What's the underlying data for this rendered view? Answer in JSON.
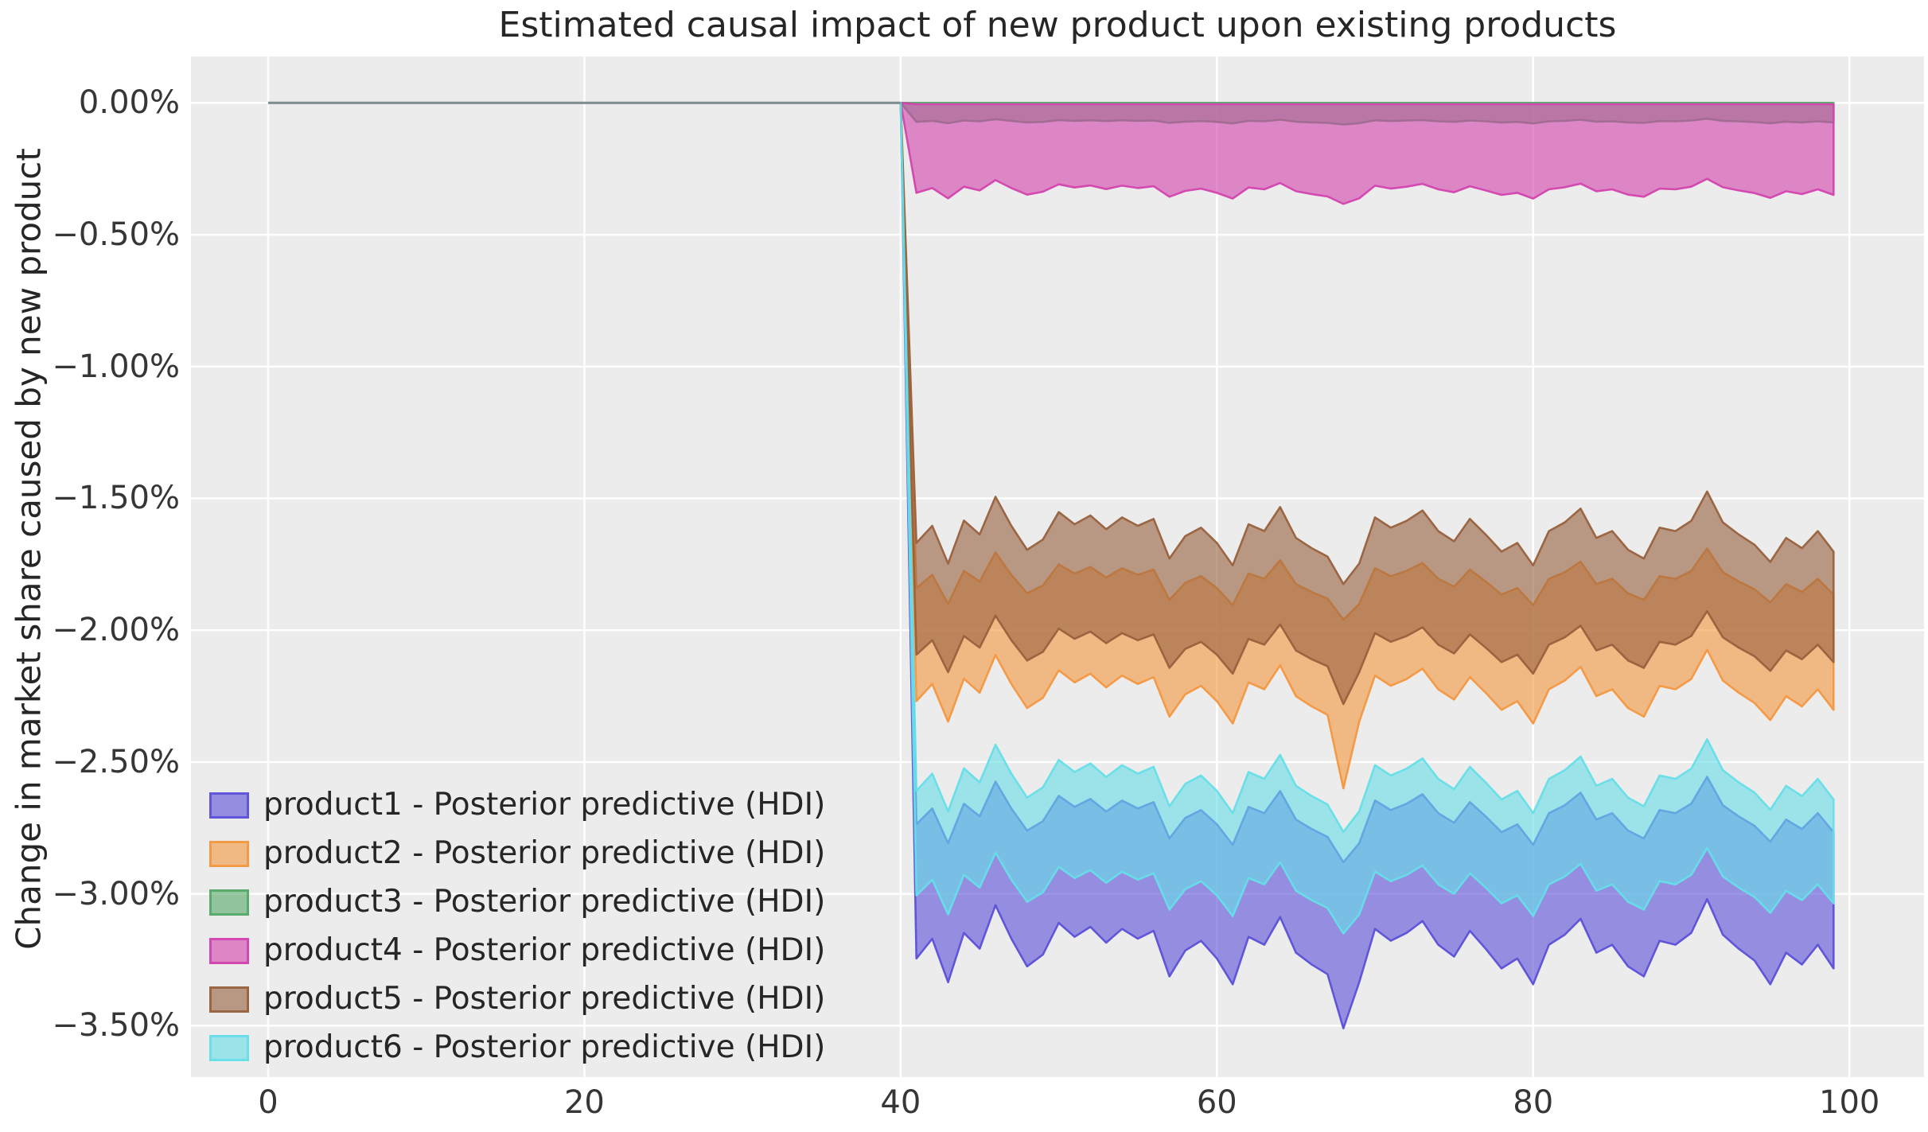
{
  "colors": {
    "figure_bg": "#ffffff",
    "axes_bg": "#ececec",
    "grid": "#ffffff",
    "pre_period_line": "#7e8f92",
    "tick_text": "#363636",
    "title_text": "#262626"
  },
  "chart_data": {
    "type": "area",
    "title": "Estimated causal impact of new product upon existing products",
    "xlabel": "",
    "ylabel": "Change in market share caused by new product",
    "grid": true,
    "legend_position": "lower left",
    "xlim": [
      -4.88,
      104.72
    ],
    "ylim": [
      -3.695,
      0.176
    ],
    "xticks": [
      {
        "label": "0",
        "value": 0
      },
      {
        "label": "20",
        "value": 20
      },
      {
        "label": "40",
        "value": 40
      },
      {
        "label": "60",
        "value": 60
      },
      {
        "label": "80",
        "value": 80
      },
      {
        "label": "100",
        "value": 100
      }
    ],
    "yticks": [
      {
        "label": "0.00%",
        "value": 0
      },
      {
        "label": "−0.50%",
        "value": -0.5
      },
      {
        "label": "−1.00%",
        "value": -1.0
      },
      {
        "label": "−1.50%",
        "value": -1.5
      },
      {
        "label": "−2.00%",
        "value": -2.0
      },
      {
        "label": "−2.50%",
        "value": -2.5
      },
      {
        "label": "−3.00%",
        "value": -3.0
      },
      {
        "label": "−3.50%",
        "value": -3.5
      }
    ],
    "intervention_x": 40,
    "pre_period": {
      "x": [
        0,
        40
      ],
      "value_pct": 0
    },
    "x_post": [
      40,
      41,
      42,
      43,
      44,
      45,
      46,
      47,
      48,
      49,
      50,
      51,
      52,
      53,
      54,
      55,
      56,
      57,
      58,
      59,
      60,
      61,
      62,
      63,
      64,
      65,
      66,
      67,
      68,
      69,
      70,
      71,
      72,
      73,
      74,
      75,
      76,
      77,
      78,
      79,
      80,
      81,
      82,
      83,
      84,
      85,
      86,
      87,
      88,
      89,
      90,
      91,
      92,
      93,
      94,
      95,
      96,
      97,
      98,
      99
    ],
    "series": [
      {
        "id": "product1",
        "label": "product1 - Posterior predictive (HDI)",
        "color": "#5b50d8",
        "fill_opacity": 0.6,
        "upper_pct": [
          0,
          -2.736,
          -2.676,
          -2.808,
          -2.658,
          -2.706,
          -2.574,
          -2.676,
          -2.76,
          -2.724,
          -2.628,
          -2.67,
          -2.64,
          -2.688,
          -2.646,
          -2.676,
          -2.652,
          -2.79,
          -2.712,
          -2.682,
          -2.736,
          -2.814,
          -2.67,
          -2.694,
          -2.61,
          -2.718,
          -2.754,
          -2.784,
          -2.88,
          -2.808,
          -2.646,
          -2.682,
          -2.658,
          -2.622,
          -2.694,
          -2.73,
          -2.652,
          -2.706,
          -2.766,
          -2.736,
          -2.814,
          -2.694,
          -2.664,
          -2.616,
          -2.718,
          -2.694,
          -2.76,
          -2.79,
          -2.682,
          -2.694,
          -2.658,
          -2.556,
          -2.664,
          -2.706,
          -2.742,
          -2.802,
          -2.718,
          -2.754,
          -2.694,
          -2.766
        ],
        "lower_pct": [
          0,
          -3.245,
          -3.17,
          -3.335,
          -3.148,
          -3.208,
          -3.043,
          -3.17,
          -3.275,
          -3.23,
          -3.11,
          -3.163,
          -3.125,
          -3.185,
          -3.133,
          -3.17,
          -3.14,
          -3.313,
          -3.215,
          -3.178,
          -3.245,
          -3.343,
          -3.163,
          -3.193,
          -3.088,
          -3.223,
          -3.268,
          -3.305,
          -3.51,
          -3.335,
          -3.133,
          -3.178,
          -3.148,
          -3.103,
          -3.193,
          -3.238,
          -3.14,
          -3.208,
          -3.283,
          -3.245,
          -3.343,
          -3.193,
          -3.155,
          -3.095,
          -3.223,
          -3.193,
          -3.275,
          -3.313,
          -3.178,
          -3.193,
          -3.148,
          -3.02,
          -3.155,
          -3.208,
          -3.253,
          -3.343,
          -3.223,
          -3.268,
          -3.193,
          -3.283
        ]
      },
      {
        "id": "product2",
        "label": "product2 - Posterior predictive (HDI)",
        "color": "#f49740",
        "fill_opacity": 0.6,
        "upper_pct": [
          0,
          -1.84,
          -1.79,
          -1.9,
          -1.775,
          -1.815,
          -1.705,
          -1.79,
          -1.86,
          -1.83,
          -1.75,
          -1.785,
          -1.76,
          -1.8,
          -1.765,
          -1.79,
          -1.77,
          -1.885,
          -1.82,
          -1.795,
          -1.84,
          -1.905,
          -1.785,
          -1.805,
          -1.735,
          -1.825,
          -1.855,
          -1.88,
          -1.96,
          -1.9,
          -1.765,
          -1.795,
          -1.775,
          -1.745,
          -1.805,
          -1.835,
          -1.77,
          -1.815,
          -1.865,
          -1.84,
          -1.905,
          -1.805,
          -1.78,
          -1.74,
          -1.825,
          -1.805,
          -1.86,
          -1.885,
          -1.795,
          -1.805,
          -1.775,
          -1.69,
          -1.78,
          -1.815,
          -1.845,
          -1.895,
          -1.825,
          -1.855,
          -1.805,
          -1.865
        ],
        "lower_pct": [
          0,
          -2.269,
          -2.204,
          -2.347,
          -2.184,
          -2.237,
          -2.094,
          -2.204,
          -2.295,
          -2.256,
          -2.152,
          -2.198,
          -2.165,
          -2.217,
          -2.172,
          -2.204,
          -2.178,
          -2.328,
          -2.243,
          -2.211,
          -2.269,
          -2.354,
          -2.198,
          -2.224,
          -2.133,
          -2.25,
          -2.289,
          -2.321,
          -2.6,
          -2.347,
          -2.172,
          -2.211,
          -2.185,
          -2.146,
          -2.224,
          -2.263,
          -2.178,
          -2.237,
          -2.302,
          -2.269,
          -2.354,
          -2.224,
          -2.191,
          -2.139,
          -2.25,
          -2.224,
          -2.295,
          -2.328,
          -2.211,
          -2.224,
          -2.185,
          -2.074,
          -2.191,
          -2.237,
          -2.276,
          -2.341,
          -2.25,
          -2.289,
          -2.224,
          -2.302
        ]
      },
      {
        "id": "product3",
        "label": "product3 - Posterior predictive (HDI)",
        "color": "#55a868",
        "fill_opacity": 0.6,
        "upper_pct": [
          0,
          0,
          0,
          0,
          0,
          0,
          0,
          0,
          0,
          0,
          0,
          0,
          0,
          0,
          0,
          0,
          0,
          0,
          0,
          0,
          0,
          0,
          0,
          0,
          0,
          0,
          0,
          0,
          0,
          0,
          0,
          0,
          0,
          0,
          0,
          0,
          0,
          0,
          0,
          0,
          0,
          0,
          0,
          0,
          0,
          0,
          0,
          0,
          0,
          0,
          0,
          0,
          0,
          0,
          0,
          0,
          0,
          0,
          0,
          0
        ],
        "lower_pct": [
          0,
          -0.072,
          -0.068,
          -0.077,
          -0.067,
          -0.07,
          -0.062,
          -0.068,
          -0.074,
          -0.072,
          -0.065,
          -0.068,
          -0.066,
          -0.069,
          -0.066,
          -0.068,
          -0.067,
          -0.076,
          -0.071,
          -0.069,
          -0.072,
          -0.078,
          -0.068,
          -0.07,
          -0.064,
          -0.071,
          -0.074,
          -0.076,
          -0.082,
          -0.077,
          -0.066,
          -0.069,
          -0.067,
          -0.065,
          -0.07,
          -0.072,
          -0.067,
          -0.07,
          -0.074,
          -0.072,
          -0.078,
          -0.07,
          -0.068,
          -0.064,
          -0.071,
          -0.07,
          -0.074,
          -0.076,
          -0.069,
          -0.07,
          -0.067,
          -0.06,
          -0.068,
          -0.07,
          -0.073,
          -0.077,
          -0.071,
          -0.074,
          -0.07,
          -0.074
        ]
      },
      {
        "id": "product4",
        "label": "product4 - Posterior predictive (HDI)",
        "color": "#d343ae",
        "fill_opacity": 0.6,
        "upper_pct": [
          0,
          -0.005,
          -0.005,
          -0.005,
          -0.005,
          -0.005,
          -0.005,
          -0.005,
          -0.005,
          -0.005,
          -0.005,
          -0.005,
          -0.005,
          -0.005,
          -0.005,
          -0.005,
          -0.005,
          -0.005,
          -0.005,
          -0.005,
          -0.005,
          -0.005,
          -0.005,
          -0.005,
          -0.005,
          -0.005,
          -0.005,
          -0.005,
          -0.005,
          -0.005,
          -0.005,
          -0.005,
          -0.005,
          -0.005,
          -0.005,
          -0.005,
          -0.005,
          -0.005,
          -0.005,
          -0.005,
          -0.005,
          -0.005,
          -0.005,
          -0.005,
          -0.005,
          -0.005,
          -0.005,
          -0.005,
          -0.005,
          -0.005,
          -0.005,
          -0.005,
          -0.005,
          -0.005,
          -0.005,
          -0.005,
          -0.005,
          -0.005,
          -0.005,
          -0.005
        ],
        "lower_pct": [
          0,
          -0.341,
          -0.323,
          -0.362,
          -0.318,
          -0.332,
          -0.293,
          -0.323,
          -0.348,
          -0.337,
          -0.309,
          -0.321,
          -0.313,
          -0.327,
          -0.314,
          -0.323,
          -0.316,
          -0.356,
          -0.334,
          -0.325,
          -0.341,
          -0.363,
          -0.321,
          -0.328,
          -0.304,
          -0.335,
          -0.346,
          -0.355,
          -0.383,
          -0.362,
          -0.314,
          -0.325,
          -0.318,
          -0.307,
          -0.328,
          -0.339,
          -0.316,
          -0.332,
          -0.349,
          -0.341,
          -0.363,
          -0.328,
          -0.32,
          -0.306,
          -0.335,
          -0.328,
          -0.348,
          -0.356,
          -0.325,
          -0.328,
          -0.318,
          -0.288,
          -0.32,
          -0.332,
          -0.342,
          -0.36,
          -0.335,
          -0.346,
          -0.328,
          -0.349
        ]
      },
      {
        "id": "product5",
        "label": "product5 - Posterior predictive (HDI)",
        "color": "#98613d",
        "fill_opacity": 0.6,
        "upper_pct": [
          0,
          -1.669,
          -1.604,
          -1.747,
          -1.584,
          -1.637,
          -1.494,
          -1.604,
          -1.695,
          -1.656,
          -1.552,
          -1.598,
          -1.565,
          -1.617,
          -1.572,
          -1.604,
          -1.578,
          -1.728,
          -1.643,
          -1.611,
          -1.669,
          -1.754,
          -1.598,
          -1.624,
          -1.533,
          -1.65,
          -1.689,
          -1.721,
          -1.825,
          -1.747,
          -1.572,
          -1.611,
          -1.585,
          -1.546,
          -1.624,
          -1.663,
          -1.578,
          -1.637,
          -1.702,
          -1.669,
          -1.754,
          -1.624,
          -1.591,
          -1.539,
          -1.65,
          -1.624,
          -1.695,
          -1.728,
          -1.611,
          -1.624,
          -1.585,
          -1.474,
          -1.591,
          -1.637,
          -1.676,
          -1.741,
          -1.65,
          -1.689,
          -1.624,
          -1.702
        ],
        "lower_pct": [
          0,
          -2.093,
          -2.038,
          -2.159,
          -2.022,
          -2.066,
          -1.945,
          -2.038,
          -2.115,
          -2.082,
          -1.994,
          -2.033,
          -2.005,
          -2.049,
          -2.011,
          -2.038,
          -2.016,
          -2.143,
          -2.071,
          -2.044,
          -2.093,
          -2.165,
          -2.033,
          -2.055,
          -1.978,
          -2.077,
          -2.11,
          -2.137,
          -2.28,
          -2.159,
          -2.011,
          -2.044,
          -2.022,
          -1.989,
          -2.055,
          -2.088,
          -2.016,
          -2.066,
          -2.121,
          -2.093,
          -2.165,
          -2.055,
          -2.027,
          -1.983,
          -2.077,
          -2.055,
          -2.115,
          -2.143,
          -2.044,
          -2.055,
          -2.022,
          -1.928,
          -2.027,
          -2.066,
          -2.099,
          -2.154,
          -2.077,
          -2.11,
          -2.055,
          -2.121
        ]
      },
      {
        "id": "product6",
        "label": "product6 - Posterior predictive (HDI)",
        "color": "#66dee8",
        "fill_opacity": 0.6,
        "upper_pct": [
          0,
          -2.609,
          -2.544,
          -2.687,
          -2.524,
          -2.577,
          -2.434,
          -2.544,
          -2.635,
          -2.596,
          -2.492,
          -2.538,
          -2.505,
          -2.557,
          -2.512,
          -2.544,
          -2.518,
          -2.668,
          -2.583,
          -2.551,
          -2.609,
          -2.694,
          -2.538,
          -2.564,
          -2.473,
          -2.59,
          -2.629,
          -2.661,
          -2.765,
          -2.687,
          -2.512,
          -2.551,
          -2.525,
          -2.486,
          -2.564,
          -2.603,
          -2.518,
          -2.577,
          -2.642,
          -2.609,
          -2.694,
          -2.564,
          -2.531,
          -2.479,
          -2.59,
          -2.564,
          -2.635,
          -2.668,
          -2.551,
          -2.564,
          -2.525,
          -2.414,
          -2.531,
          -2.577,
          -2.616,
          -2.681,
          -2.59,
          -2.629,
          -2.564,
          -2.642
        ],
        "lower_pct": [
          0,
          -3.006,
          -2.946,
          -3.078,
          -2.928,
          -2.976,
          -2.844,
          -2.946,
          -3.03,
          -2.994,
          -2.898,
          -2.94,
          -2.91,
          -2.958,
          -2.916,
          -2.946,
          -2.922,
          -3.06,
          -2.982,
          -2.952,
          -3.006,
          -3.084,
          -2.94,
          -2.964,
          -2.88,
          -2.988,
          -3.024,
          -3.054,
          -3.15,
          -3.078,
          -2.916,
          -2.952,
          -2.928,
          -2.892,
          -2.964,
          -3,
          -2.922,
          -2.976,
          -3.036,
          -3.006,
          -3.084,
          -2.964,
          -2.934,
          -2.886,
          -2.988,
          -2.964,
          -3.03,
          -3.06,
          -2.952,
          -2.964,
          -2.928,
          -2.826,
          -2.934,
          -2.976,
          -3.012,
          -3.072,
          -2.988,
          -3.024,
          -2.964,
          -3.036
        ]
      }
    ]
  }
}
